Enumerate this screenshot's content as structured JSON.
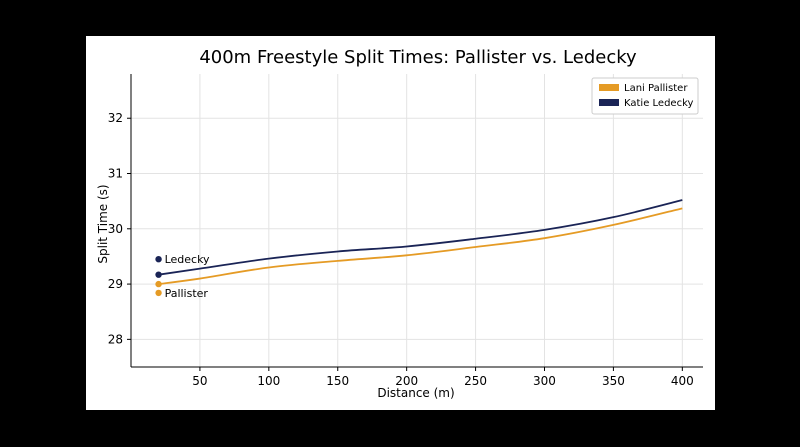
{
  "chart_data": {
    "type": "line",
    "title": "400m Freestyle Split Times: Pallister vs. Ledecky",
    "xlabel": "Distance (m)",
    "ylabel": "Split Time (s)",
    "xlim": [
      0,
      415
    ],
    "ylim": [
      27.5,
      32.8
    ],
    "xticks": [
      50,
      100,
      150,
      200,
      250,
      300,
      350,
      400
    ],
    "yticks": [
      28,
      29,
      30,
      31,
      32
    ],
    "grid": true,
    "legend_position": "top-right",
    "x": [
      20,
      50,
      100,
      150,
      200,
      250,
      300,
      350,
      400
    ],
    "series": [
      {
        "name": "Lani Pallister",
        "color": "#E59B25",
        "values": [
          29.0,
          29.1,
          29.3,
          29.42,
          29.52,
          29.67,
          29.83,
          30.07,
          30.37
        ]
      },
      {
        "name": "Katie Ledecky",
        "color": "#1A2456",
        "values": [
          29.17,
          29.28,
          29.46,
          29.59,
          29.68,
          29.82,
          29.98,
          30.21,
          30.52
        ]
      }
    ],
    "annotations": [
      {
        "text": "Ledecky",
        "x": 20,
        "y": 29.45,
        "color": "#1A2456"
      },
      {
        "text": "Pallister",
        "x": 20,
        "y": 28.84,
        "color": "#E59B25"
      }
    ]
  }
}
